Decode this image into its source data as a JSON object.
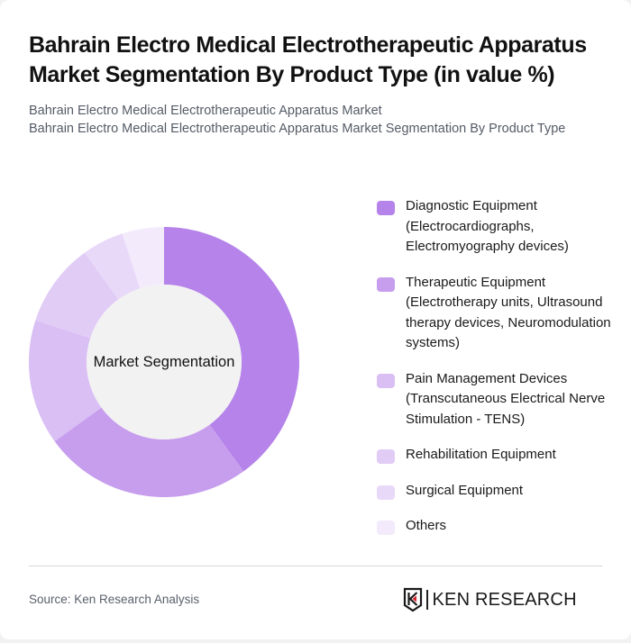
{
  "header": {
    "title": "Bahrain Electro Medical Electrotherapeutic Apparatus Market Segmentation By Product Type (in value %)",
    "subtitle_line1": "Bahrain Electro Medical Electrotherapeutic Apparatus Market",
    "subtitle_line2": "Bahrain Electro Medical Electrotherapeutic Apparatus Market Segmentation By Product Type"
  },
  "chart": {
    "center_label": "Market Segmentation"
  },
  "legend": {
    "items": [
      {
        "label": "Diagnostic Equipment (Electrocardiographs, Electromyography devices)",
        "color": "#b583e9"
      },
      {
        "label": "Therapeutic Equipment (Electrotherapy units, Ultrasound therapy devices, Neuromodulation systems)",
        "color": "#c79dee"
      },
      {
        "label": "Pain Management Devices (Transcutaneous Electrical Nerve Stimulation - TENS)",
        "color": "#d9bff4"
      },
      {
        "label": "Rehabilitation Equipment",
        "color": "#e1ccf6"
      },
      {
        "label": "Surgical Equipment",
        "color": "#e9d9f9"
      },
      {
        "label": "Others",
        "color": "#f3ebfc"
      }
    ]
  },
  "footer": {
    "source": "Source: Ken Research Analysis",
    "logo_text": "KEN RESEARCH"
  },
  "chart_data": {
    "type": "pie",
    "title": "Bahrain Electro Medical Electrotherapeutic Apparatus Market Segmentation By Product Type (in value %)",
    "subtitle": "Bahrain Electro Medical Electrotherapeutic Apparatus Market",
    "center_label": "Market Segmentation",
    "donut": true,
    "categories": [
      "Diagnostic Equipment (Electrocardiographs, Electromyography devices)",
      "Therapeutic Equipment (Electrotherapy units, Ultrasound therapy devices, Neuromodulation systems)",
      "Pain Management Devices (Transcutaneous Electrical Nerve Stimulation - TENS)",
      "Rehabilitation Equipment",
      "Surgical Equipment",
      "Others"
    ],
    "values": [
      40,
      25,
      15,
      10,
      5,
      5
    ],
    "colors": [
      "#b583e9",
      "#c79dee",
      "#d9bff4",
      "#e1ccf6",
      "#e9d9f9",
      "#f3ebfc"
    ],
    "legend_position": "right",
    "start_angle": "12 o'clock, clockwise"
  }
}
